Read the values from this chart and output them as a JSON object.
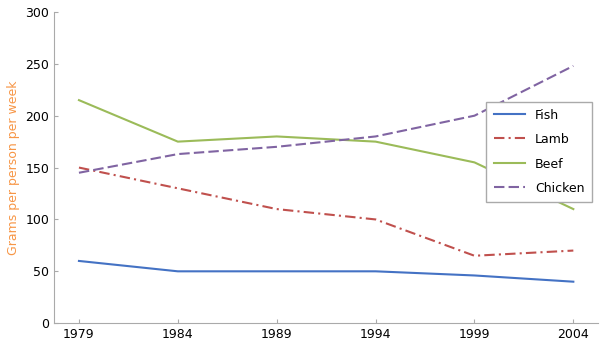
{
  "years": [
    1979,
    1984,
    1989,
    1994,
    1999,
    2004
  ],
  "fish": [
    60,
    50,
    50,
    50,
    46,
    40
  ],
  "lamb": [
    150,
    130,
    110,
    100,
    65,
    70
  ],
  "beef": [
    215,
    175,
    180,
    175,
    155,
    110
  ],
  "chicken": [
    145,
    163,
    170,
    180,
    200,
    248
  ],
  "ylabel": "Grams per person per week",
  "ylim": [
    0,
    300
  ],
  "yticks": [
    0,
    50,
    100,
    150,
    200,
    250,
    300
  ],
  "fish_color": "#4472C4",
  "lamb_color": "#C0504D",
  "beef_color": "#9BBB59",
  "chicken_color": "#8064A2",
  "ylabel_color": "#F79646",
  "legend_labels": [
    "Fish",
    "Lamb",
    "Beef",
    "Chicken"
  ],
  "legend_loc": "center right",
  "tick_fontsize": 9,
  "label_fontsize": 9
}
